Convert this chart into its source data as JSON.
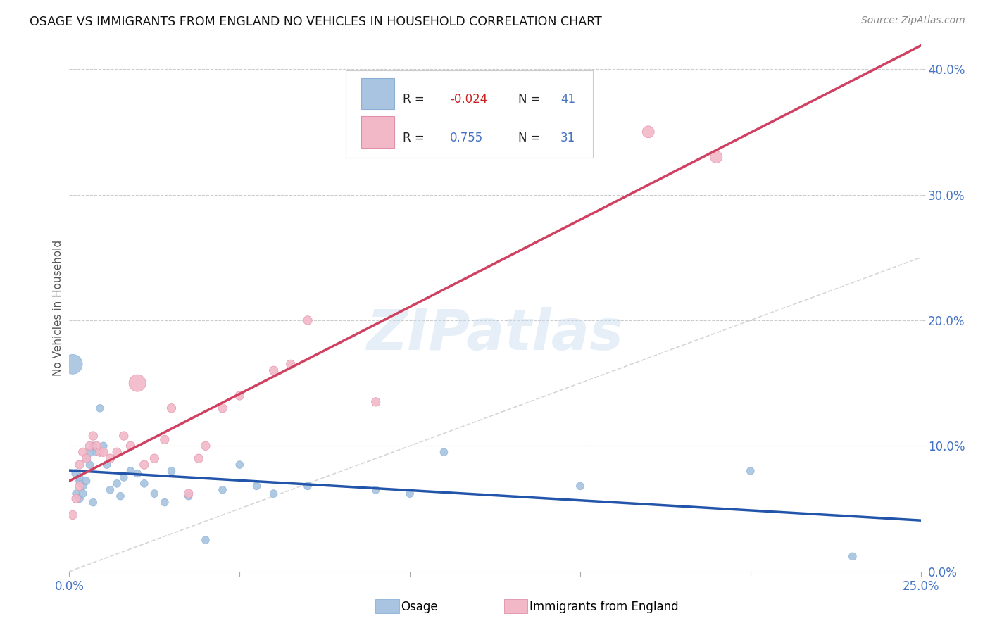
{
  "title": "OSAGE VS IMMIGRANTS FROM ENGLAND NO VEHICLES IN HOUSEHOLD CORRELATION CHART",
  "source": "Source: ZipAtlas.com",
  "ylabel": "No Vehicles in Household",
  "xlim": [
    0.0,
    0.25
  ],
  "ylim": [
    0.0,
    0.42
  ],
  "xticks": [
    0.0,
    0.05,
    0.1,
    0.15,
    0.2,
    0.25
  ],
  "yticks": [
    0.0,
    0.1,
    0.2,
    0.3,
    0.4
  ],
  "xticklabels_show": [
    "0.0%",
    "25.0%"
  ],
  "yticklabels_right": [
    "0.0%",
    "10.0%",
    "20.0%",
    "30.0%",
    "40.0%"
  ],
  "watermark": "ZIPatlas",
  "color_osage": "#a8c4e0",
  "color_england": "#f2b8c8",
  "color_osage_line": "#2255aa",
  "color_england_line": "#d04060",
  "color_diag": "#cccccc",
  "osage_x": [
    0.001,
    0.002,
    0.002,
    0.003,
    0.003,
    0.003,
    0.004,
    0.004,
    0.005,
    0.005,
    0.006,
    0.006,
    0.007,
    0.007,
    0.008,
    0.009,
    0.01,
    0.011,
    0.012,
    0.014,
    0.015,
    0.016,
    0.018,
    0.02,
    0.022,
    0.025,
    0.028,
    0.03,
    0.035,
    0.04,
    0.045,
    0.05,
    0.055,
    0.06,
    0.07,
    0.09,
    0.1,
    0.11,
    0.15,
    0.2,
    0.23
  ],
  "osage_y": [
    0.165,
    0.078,
    0.062,
    0.072,
    0.058,
    0.075,
    0.068,
    0.062,
    0.09,
    0.072,
    0.095,
    0.085,
    0.1,
    0.055,
    0.095,
    0.13,
    0.1,
    0.085,
    0.065,
    0.07,
    0.06,
    0.075,
    0.08,
    0.078,
    0.07,
    0.062,
    0.055,
    0.08,
    0.06,
    0.025,
    0.065,
    0.085,
    0.068,
    0.062,
    0.068,
    0.065,
    0.062,
    0.095,
    0.068,
    0.08,
    0.012
  ],
  "england_x": [
    0.001,
    0.002,
    0.003,
    0.003,
    0.004,
    0.005,
    0.006,
    0.007,
    0.008,
    0.009,
    0.01,
    0.012,
    0.014,
    0.016,
    0.018,
    0.02,
    0.022,
    0.025,
    0.028,
    0.03,
    0.035,
    0.038,
    0.04,
    0.045,
    0.05,
    0.06,
    0.065,
    0.07,
    0.09,
    0.17,
    0.19
  ],
  "england_y": [
    0.045,
    0.058,
    0.085,
    0.068,
    0.095,
    0.09,
    0.1,
    0.108,
    0.1,
    0.095,
    0.095,
    0.09,
    0.095,
    0.108,
    0.1,
    0.15,
    0.085,
    0.09,
    0.105,
    0.13,
    0.062,
    0.09,
    0.1,
    0.13,
    0.14,
    0.16,
    0.165,
    0.2,
    0.135,
    0.35,
    0.33
  ],
  "osage_sizes": [
    400,
    80,
    60,
    60,
    60,
    60,
    60,
    60,
    60,
    60,
    80,
    60,
    60,
    60,
    60,
    60,
    60,
    60,
    60,
    60,
    60,
    60,
    60,
    60,
    60,
    60,
    60,
    60,
    60,
    60,
    60,
    60,
    60,
    60,
    60,
    60,
    60,
    60,
    60,
    60,
    60
  ],
  "england_sizes": [
    80,
    80,
    80,
    80,
    80,
    80,
    80,
    80,
    80,
    80,
    80,
    80,
    80,
    80,
    80,
    300,
    80,
    80,
    80,
    80,
    80,
    80,
    80,
    80,
    80,
    80,
    80,
    80,
    80,
    150,
    150
  ]
}
